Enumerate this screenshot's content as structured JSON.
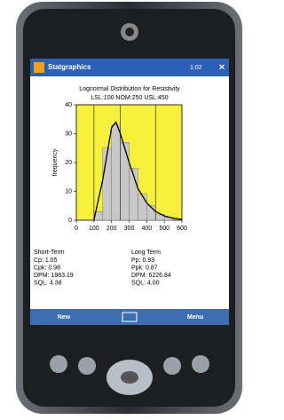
{
  "ui": {
    "app_title": "Statgraphics",
    "clock": "1:02",
    "soft_left": "New",
    "soft_right": "Menu"
  },
  "chart_data": {
    "type": "histogram",
    "title": "Lognormal Distribution for Resistivity",
    "subtitle": "LSL:100 NOM:250 USL:450",
    "y_label": "frequency",
    "bins": [
      100,
      150,
      200,
      250,
      300,
      350,
      400,
      450,
      500,
      550
    ],
    "values": [
      3,
      25,
      33,
      27,
      18,
      9,
      5,
      2,
      1
    ],
    "color": "#c8c8c8",
    "background": "#f5f03c",
    "spec_limits": [
      100,
      250,
      450
    ],
    "fit_curve": {
      "color": "#000000",
      "x": [
        100,
        150,
        200,
        225,
        250,
        300,
        350,
        400,
        450,
        500,
        550,
        600
      ],
      "values": [
        0,
        14,
        32,
        34,
        30,
        20,
        11,
        6,
        3,
        1.5,
        0.7,
        0.3
      ]
    },
    "xlim": [
      0,
      600
    ],
    "xticks": [
      0,
      100,
      200,
      300,
      400,
      500,
      600
    ],
    "ylim": [
      0,
      40
    ],
    "yticks": [
      0,
      10,
      20,
      30,
      40
    ]
  },
  "stats": {
    "short_term": {
      "heading": "Short-Term",
      "lines": [
        "Cp: 1.05",
        "Cpk: 0.98",
        "DPM: 1983.19",
        "SQL: 4.38"
      ]
    },
    "long_term": {
      "heading": "Long Term",
      "lines": [
        "Pp: 0.93",
        "Ppk: 0.87",
        "DPM: 6226.84",
        "SQL: 4.00"
      ]
    }
  }
}
